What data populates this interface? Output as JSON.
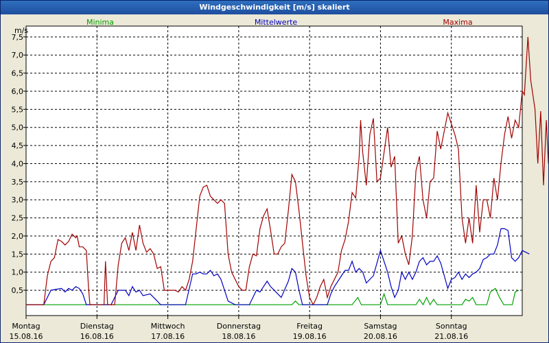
{
  "window": {
    "title": "Windgeschwindigkeit [m/s] skaliert"
  },
  "chart_data": {
    "type": "line",
    "title": "Windgeschwindigkeit [m/s] skaliert",
    "ylabel": "m/s",
    "ylim": [
      -0.2,
      7.8
    ],
    "xlim": [
      0,
      7
    ],
    "yticks": [
      {
        "v": 0.5,
        "label": "0,5"
      },
      {
        "v": 1.0,
        "label": "1,0"
      },
      {
        "v": 1.5,
        "label": "1,5"
      },
      {
        "v": 2.0,
        "label": "2,0"
      },
      {
        "v": 2.5,
        "label": "2,5"
      },
      {
        "v": 3.0,
        "label": "3,0"
      },
      {
        "v": 3.5,
        "label": "3,5"
      },
      {
        "v": 4.0,
        "label": "4,0"
      },
      {
        "v": 4.5,
        "label": "4,5"
      },
      {
        "v": 5.0,
        "label": "5,0"
      },
      {
        "v": 5.5,
        "label": "5,5"
      },
      {
        "v": 6.0,
        "label": "6,0"
      },
      {
        "v": 6.5,
        "label": "6,5"
      },
      {
        "v": 7.0,
        "label": "7,0"
      },
      {
        "v": 7.5,
        "label": "7,5"
      }
    ],
    "xticks": [
      {
        "v": 0,
        "day": "Montag",
        "date": "15.08.16"
      },
      {
        "v": 1,
        "day": "Dienstag",
        "date": "16.08.16"
      },
      {
        "v": 2,
        "day": "Mittwoch",
        "date": "17.08.16"
      },
      {
        "v": 3,
        "day": "Donnerstag",
        "date": "18.08.16"
      },
      {
        "v": 4,
        "day": "Freitag",
        "date": "19.08.16"
      },
      {
        "v": 5,
        "day": "Samstag",
        "date": "20.08.16"
      },
      {
        "v": 6,
        "day": "Sonntag",
        "date": "21.08.16"
      }
    ],
    "grid": true,
    "legend_position": "top",
    "series": [
      {
        "name": "Minima",
        "color": "#00A000",
        "points": [
          [
            0,
            0.1
          ],
          [
            3.75,
            0.1
          ],
          [
            3.8,
            0.2
          ],
          [
            3.85,
            0.1
          ],
          [
            4.6,
            0.1
          ],
          [
            4.68,
            0.3
          ],
          [
            4.73,
            0.1
          ],
          [
            5.0,
            0.1
          ],
          [
            5.05,
            0.4
          ],
          [
            5.1,
            0.1
          ],
          [
            5.5,
            0.1
          ],
          [
            5.55,
            0.25
          ],
          [
            5.6,
            0.1
          ],
          [
            5.65,
            0.3
          ],
          [
            5.7,
            0.1
          ],
          [
            5.75,
            0.25
          ],
          [
            5.8,
            0.1
          ],
          [
            6.15,
            0.1
          ],
          [
            6.2,
            0.25
          ],
          [
            6.25,
            0.2
          ],
          [
            6.3,
            0.3
          ],
          [
            6.35,
            0.1
          ],
          [
            6.5,
            0.1
          ],
          [
            6.55,
            0.45
          ],
          [
            6.62,
            0.55
          ],
          [
            6.68,
            0.3
          ],
          [
            6.74,
            0.1
          ],
          [
            6.86,
            0.1
          ],
          [
            6.9,
            0.45
          ],
          [
            6.95,
            0.5
          ]
        ]
      },
      {
        "name": "Mittelwerte",
        "color": "#0000C0",
        "points": [
          [
            0,
            0.1
          ],
          [
            0.25,
            0.1
          ],
          [
            0.35,
            0.5
          ],
          [
            0.5,
            0.55
          ],
          [
            0.55,
            0.45
          ],
          [
            0.6,
            0.55
          ],
          [
            0.65,
            0.5
          ],
          [
            0.7,
            0.6
          ],
          [
            0.75,
            0.55
          ],
          [
            0.8,
            0.4
          ],
          [
            0.85,
            0.1
          ],
          [
            1.0,
            0.1
          ],
          [
            1.1,
            0.1
          ],
          [
            1.2,
            0.1
          ],
          [
            1.3,
            0.5
          ],
          [
            1.4,
            0.5
          ],
          [
            1.45,
            0.35
          ],
          [
            1.5,
            0.6
          ],
          [
            1.55,
            0.45
          ],
          [
            1.6,
            0.5
          ],
          [
            1.65,
            0.35
          ],
          [
            1.75,
            0.4
          ],
          [
            1.8,
            0.3
          ],
          [
            1.9,
            0.1
          ],
          [
            2.25,
            0.1
          ],
          [
            2.35,
            0.95
          ],
          [
            2.4,
            0.95
          ],
          [
            2.45,
            1.0
          ],
          [
            2.5,
            0.95
          ],
          [
            2.55,
            0.95
          ],
          [
            2.6,
            1.05
          ],
          [
            2.65,
            0.9
          ],
          [
            2.7,
            0.95
          ],
          [
            2.75,
            0.8
          ],
          [
            2.85,
            0.2
          ],
          [
            2.95,
            0.1
          ],
          [
            3.1,
            0.1
          ],
          [
            3.15,
            0.1
          ],
          [
            3.2,
            0.3
          ],
          [
            3.25,
            0.5
          ],
          [
            3.3,
            0.45
          ],
          [
            3.35,
            0.6
          ],
          [
            3.4,
            0.75
          ],
          [
            3.45,
            0.6
          ],
          [
            3.5,
            0.5
          ],
          [
            3.6,
            0.3
          ],
          [
            3.7,
            0.75
          ],
          [
            3.75,
            1.1
          ],
          [
            3.8,
            1.0
          ],
          [
            3.85,
            0.5
          ],
          [
            3.9,
            0.1
          ],
          [
            4.25,
            0.1
          ],
          [
            4.3,
            0.4
          ],
          [
            4.35,
            0.6
          ],
          [
            4.45,
            0.9
          ],
          [
            4.5,
            1.05
          ],
          [
            4.55,
            1.05
          ],
          [
            4.6,
            1.3
          ],
          [
            4.65,
            1.0
          ],
          [
            4.7,
            1.1
          ],
          [
            4.75,
            1.0
          ],
          [
            4.8,
            0.7
          ],
          [
            4.9,
            0.9
          ],
          [
            5.0,
            1.6
          ],
          [
            5.05,
            1.3
          ],
          [
            5.1,
            1.0
          ],
          [
            5.15,
            0.6
          ],
          [
            5.2,
            0.3
          ],
          [
            5.25,
            0.5
          ],
          [
            5.3,
            1.0
          ],
          [
            5.35,
            0.8
          ],
          [
            5.4,
            1.0
          ],
          [
            5.45,
            0.8
          ],
          [
            5.5,
            1.0
          ],
          [
            5.55,
            1.3
          ],
          [
            5.6,
            1.4
          ],
          [
            5.65,
            1.2
          ],
          [
            5.7,
            1.3
          ],
          [
            5.75,
            1.3
          ],
          [
            5.8,
            1.45
          ],
          [
            5.85,
            1.25
          ],
          [
            5.9,
            0.9
          ],
          [
            5.95,
            0.55
          ],
          [
            6.0,
            0.8
          ],
          [
            6.05,
            0.85
          ],
          [
            6.1,
            1.0
          ],
          [
            6.15,
            0.8
          ],
          [
            6.2,
            0.95
          ],
          [
            6.25,
            0.85
          ],
          [
            6.3,
            0.95
          ],
          [
            6.35,
            1.0
          ],
          [
            6.4,
            1.1
          ],
          [
            6.45,
            1.35
          ],
          [
            6.5,
            1.4
          ],
          [
            6.55,
            1.5
          ],
          [
            6.6,
            1.5
          ],
          [
            6.65,
            1.75
          ],
          [
            6.7,
            2.2
          ],
          [
            6.75,
            2.2
          ],
          [
            6.8,
            2.15
          ],
          [
            6.85,
            1.4
          ],
          [
            6.9,
            1.3
          ],
          [
            6.95,
            1.4
          ],
          [
            7.0,
            1.6
          ],
          [
            7.05,
            1.55
          ],
          [
            7.1,
            1.5
          ]
        ]
      },
      {
        "name": "Maxima",
        "color": "#A00000",
        "points": [
          [
            0,
            0.1
          ],
          [
            0.25,
            0.1
          ],
          [
            0.3,
            0.9
          ],
          [
            0.35,
            1.3
          ],
          [
            0.4,
            1.4
          ],
          [
            0.45,
            1.9
          ],
          [
            0.5,
            1.85
          ],
          [
            0.55,
            1.75
          ],
          [
            0.6,
            1.85
          ],
          [
            0.65,
            2.05
          ],
          [
            0.7,
            1.95
          ],
          [
            0.72,
            2.0
          ],
          [
            0.75,
            1.7
          ],
          [
            0.8,
            1.7
          ],
          [
            0.85,
            1.6
          ],
          [
            0.88,
            0.6
          ],
          [
            0.9,
            0.1
          ],
          [
            1.05,
            0.1
          ],
          [
            1.1,
            0.1
          ],
          [
            1.12,
            1.3
          ],
          [
            1.15,
            0.1
          ],
          [
            1.25,
            0.1
          ],
          [
            1.3,
            1.2
          ],
          [
            1.35,
            1.8
          ],
          [
            1.4,
            1.95
          ],
          [
            1.45,
            1.6
          ],
          [
            1.5,
            2.1
          ],
          [
            1.55,
            1.6
          ],
          [
            1.6,
            2.3
          ],
          [
            1.65,
            1.8
          ],
          [
            1.7,
            1.55
          ],
          [
            1.75,
            1.65
          ],
          [
            1.8,
            1.5
          ],
          [
            1.85,
            1.1
          ],
          [
            1.9,
            1.15
          ],
          [
            1.95,
            0.5
          ],
          [
            2.05,
            0.5
          ],
          [
            2.1,
            0.5
          ],
          [
            2.15,
            0.45
          ],
          [
            2.2,
            0.6
          ],
          [
            2.25,
            0.5
          ],
          [
            2.3,
            0.8
          ],
          [
            2.35,
            1.3
          ],
          [
            2.4,
            2.2
          ],
          [
            2.45,
            3.1
          ],
          [
            2.5,
            3.35
          ],
          [
            2.55,
            3.4
          ],
          [
            2.6,
            3.1
          ],
          [
            2.65,
            3.0
          ],
          [
            2.7,
            2.9
          ],
          [
            2.75,
            3.0
          ],
          [
            2.8,
            2.9
          ],
          [
            2.85,
            1.5
          ],
          [
            2.9,
            1.0
          ],
          [
            2.95,
            0.8
          ],
          [
            3.0,
            0.6
          ],
          [
            3.05,
            0.5
          ],
          [
            3.1,
            0.5
          ],
          [
            3.15,
            1.15
          ],
          [
            3.2,
            1.5
          ],
          [
            3.25,
            1.45
          ],
          [
            3.3,
            2.2
          ],
          [
            3.35,
            2.55
          ],
          [
            3.4,
            2.75
          ],
          [
            3.45,
            2.15
          ],
          [
            3.5,
            1.5
          ],
          [
            3.55,
            1.5
          ],
          [
            3.6,
            1.7
          ],
          [
            3.65,
            1.8
          ],
          [
            3.7,
            2.7
          ],
          [
            3.75,
            3.7
          ],
          [
            3.8,
            3.5
          ],
          [
            3.85,
            2.7
          ],
          [
            3.9,
            1.8
          ],
          [
            3.95,
            0.9
          ],
          [
            4.0,
            0.3
          ],
          [
            4.05,
            0.1
          ],
          [
            4.1,
            0.3
          ],
          [
            4.15,
            0.6
          ],
          [
            4.2,
            0.8
          ],
          [
            4.25,
            0.3
          ],
          [
            4.3,
            0.6
          ],
          [
            4.35,
            0.8
          ],
          [
            4.4,
            1.0
          ],
          [
            4.45,
            1.6
          ],
          [
            4.5,
            1.9
          ],
          [
            4.55,
            2.4
          ],
          [
            4.6,
            3.2
          ],
          [
            4.65,
            3.05
          ],
          [
            4.7,
            4.2
          ],
          [
            4.72,
            5.2
          ],
          [
            4.75,
            4.3
          ],
          [
            4.8,
            3.4
          ],
          [
            4.85,
            4.8
          ],
          [
            4.9,
            5.25
          ],
          [
            4.95,
            3.5
          ],
          [
            5.0,
            3.6
          ],
          [
            5.05,
            4.3
          ],
          [
            5.1,
            5.0
          ],
          [
            5.15,
            3.9
          ],
          [
            5.2,
            4.2
          ],
          [
            5.25,
            1.8
          ],
          [
            5.3,
            2.0
          ],
          [
            5.35,
            1.5
          ],
          [
            5.4,
            1.2
          ],
          [
            5.45,
            2.0
          ],
          [
            5.5,
            3.8
          ],
          [
            5.55,
            4.2
          ],
          [
            5.6,
            3.0
          ],
          [
            5.65,
            2.5
          ],
          [
            5.7,
            3.5
          ],
          [
            5.75,
            3.6
          ],
          [
            5.8,
            4.9
          ],
          [
            5.85,
            4.4
          ],
          [
            5.9,
            4.9
          ],
          [
            5.95,
            5.4
          ],
          [
            6.0,
            5.1
          ],
          [
            6.05,
            4.8
          ],
          [
            6.1,
            4.4
          ],
          [
            6.15,
            2.5
          ],
          [
            6.2,
            1.8
          ],
          [
            6.25,
            2.5
          ],
          [
            6.3,
            1.8
          ],
          [
            6.35,
            3.4
          ],
          [
            6.4,
            2.1
          ],
          [
            6.45,
            3.0
          ],
          [
            6.5,
            3.0
          ],
          [
            6.55,
            2.5
          ],
          [
            6.6,
            3.6
          ],
          [
            6.65,
            3.0
          ],
          [
            6.7,
            4.0
          ],
          [
            6.75,
            4.8
          ],
          [
            6.8,
            5.3
          ],
          [
            6.85,
            4.7
          ],
          [
            6.9,
            5.2
          ],
          [
            6.95,
            5.0
          ],
          [
            7.0,
            6.0
          ],
          [
            7.03,
            5.9
          ],
          [
            7.08,
            7.5
          ],
          [
            7.12,
            6.3
          ],
          [
            7.18,
            5.5
          ],
          [
            7.22,
            4.0
          ],
          [
            7.26,
            5.45
          ],
          [
            7.3,
            3.4
          ],
          [
            7.34,
            5.2
          ],
          [
            7.37,
            4.0
          ],
          [
            7.42,
            4.4
          ]
        ]
      }
    ]
  }
}
